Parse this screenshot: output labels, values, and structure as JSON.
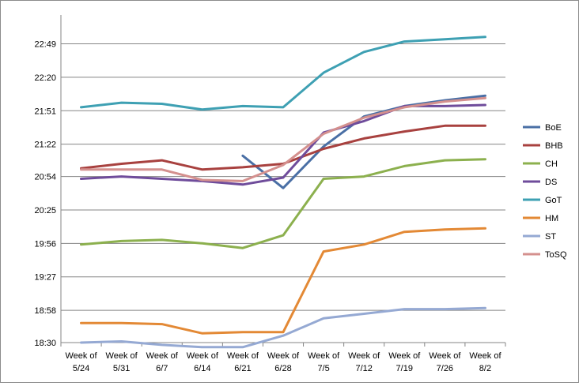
{
  "chart_data": {
    "type": "line",
    "title": "",
    "xlabel": "",
    "ylabel": "",
    "categories": [
      "Week of 5/24",
      "Week of 5/31",
      "Week of 6/7",
      "Week of 6/14",
      "Week of 6/21",
      "Week of 6/28",
      "Week of 7/5",
      "Week of 7/12",
      "Week of 7/19",
      "Week of 7/26",
      "Week of 8/2"
    ],
    "y_ticks": [
      "18:30",
      "18:58",
      "19:27",
      "19:56",
      "20:25",
      "20:54",
      "21:22",
      "21:51",
      "22:20",
      "22:49"
    ],
    "ylim_minutes": [
      1110,
      1394
    ],
    "grid": true,
    "legend_position": "right",
    "series": [
      {
        "name": "BoE",
        "color": "#4a6fa5",
        "values": [
          null,
          null,
          null,
          null,
          "21:12",
          "20:44",
          "21:20",
          "21:46",
          "21:55",
          "22:00",
          "22:04"
        ]
      },
      {
        "name": "BHB",
        "color": "#a8413f",
        "values": [
          "21:01",
          "21:05",
          "21:08",
          "21:00",
          "21:02",
          "21:05",
          "21:18",
          "21:27",
          "21:33",
          "21:38",
          "21:38"
        ]
      },
      {
        "name": "CH",
        "color": "#8cb04e",
        "values": [
          "19:55",
          "19:58",
          "19:59",
          "19:56",
          "19:52",
          "20:03",
          "20:52",
          "20:54",
          "21:03",
          "21:08",
          "21:09"
        ]
      },
      {
        "name": "DS",
        "color": "#6f4c9b",
        "values": [
          "20:52",
          "20:54",
          "20:52",
          "20:50",
          "20:47",
          "20:53",
          "21:32",
          "21:42",
          "21:55",
          "21:55",
          "21:56"
        ]
      },
      {
        "name": "GoT",
        "color": "#3ea0b3",
        "values": [
          "21:54",
          "21:58",
          "21:57",
          "21:52",
          "21:55",
          "21:54",
          "22:24",
          "22:42",
          "22:51",
          "22:53",
          "22:55"
        ]
      },
      {
        "name": "HM",
        "color": "#e38935",
        "values": [
          "18:47",
          "18:47",
          "18:46",
          "18:38",
          "18:39",
          "18:39",
          "19:49",
          "19:55",
          "20:06",
          "20:08",
          "20:09"
        ]
      },
      {
        "name": "ST",
        "color": "#95a9d3",
        "values": [
          "18:30",
          "18:31",
          "18:28",
          "18:26",
          "18:26",
          "18:36",
          "18:51",
          "18:55",
          "18:59",
          "18:59",
          "19:00"
        ]
      },
      {
        "name": "ToSQ",
        "color": "#d4908e",
        "values": [
          "21:00",
          "21:00",
          "21:00",
          "20:51",
          "20:50",
          "21:04",
          "21:31",
          "21:45",
          "21:54",
          "21:59",
          "22:02"
        ]
      }
    ]
  }
}
